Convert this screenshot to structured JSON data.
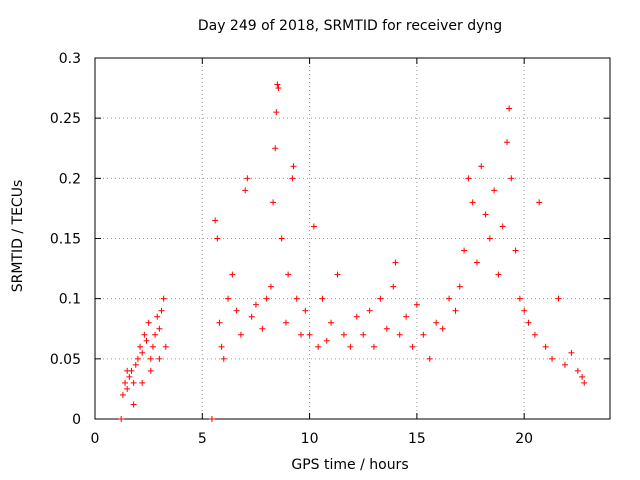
{
  "chart_data": {
    "type": "scatter",
    "title": "Day 249 of 2018, SRMTID for receiver dyng",
    "xlabel": "GPS time / hours",
    "ylabel": "SRMTID / TECUs",
    "xlim": [
      0,
      24
    ],
    "ylim": [
      0,
      0.3
    ],
    "xticks": [
      "0",
      "5",
      "10",
      "15",
      "20"
    ],
    "yticks": [
      "0",
      "0.05",
      "0.1",
      "0.15",
      "0.2",
      "0.25",
      "0.3"
    ],
    "xtick_values": [
      0,
      5,
      10,
      15,
      20
    ],
    "ytick_values": [
      0,
      0.05,
      0.1,
      0.15,
      0.2,
      0.25,
      0.3
    ],
    "grid": true,
    "marker": "+",
    "series": [
      {
        "name": "SRMTID",
        "color": "#ff0000",
        "points": [
          [
            1.22,
            0.0
          ],
          [
            5.45,
            0.0
          ],
          [
            1.3,
            0.02
          ],
          [
            1.4,
            0.03
          ],
          [
            1.5,
            0.025
          ],
          [
            1.6,
            0.035
          ],
          [
            1.7,
            0.04
          ],
          [
            1.8,
            0.03
          ],
          [
            1.9,
            0.045
          ],
          [
            2.0,
            0.05
          ],
          [
            2.1,
            0.06
          ],
          [
            2.2,
            0.055
          ],
          [
            2.3,
            0.07
          ],
          [
            2.4,
            0.065
          ],
          [
            2.5,
            0.08
          ],
          [
            2.6,
            0.05
          ],
          [
            2.7,
            0.06
          ],
          [
            2.8,
            0.07
          ],
          [
            2.9,
            0.085
          ],
          [
            3.0,
            0.075
          ],
          [
            3.1,
            0.09
          ],
          [
            3.2,
            0.1
          ],
          [
            3.3,
            0.06
          ],
          [
            1.5,
            0.04
          ],
          [
            1.8,
            0.012
          ],
          [
            2.2,
            0.03
          ],
          [
            2.6,
            0.04
          ],
          [
            3.0,
            0.05
          ],
          [
            5.6,
            0.165
          ],
          [
            5.7,
            0.15
          ],
          [
            5.8,
            0.08
          ],
          [
            5.9,
            0.06
          ],
          [
            6.0,
            0.05
          ],
          [
            6.2,
            0.1
          ],
          [
            6.4,
            0.12
          ],
          [
            6.6,
            0.09
          ],
          [
            6.8,
            0.07
          ],
          [
            7.0,
            0.19
          ],
          [
            7.1,
            0.2
          ],
          [
            7.3,
            0.085
          ],
          [
            7.5,
            0.095
          ],
          [
            7.8,
            0.075
          ],
          [
            8.0,
            0.1
          ],
          [
            8.2,
            0.11
          ],
          [
            8.3,
            0.18
          ],
          [
            8.4,
            0.225
          ],
          [
            8.45,
            0.255
          ],
          [
            8.5,
            0.278
          ],
          [
            8.55,
            0.275
          ],
          [
            8.7,
            0.15
          ],
          [
            8.9,
            0.08
          ],
          [
            9.0,
            0.12
          ],
          [
            9.2,
            0.2
          ],
          [
            9.25,
            0.21
          ],
          [
            9.4,
            0.1
          ],
          [
            9.6,
            0.07
          ],
          [
            9.8,
            0.09
          ],
          [
            10.0,
            0.07
          ],
          [
            10.2,
            0.16
          ],
          [
            10.4,
            0.06
          ],
          [
            10.6,
            0.1
          ],
          [
            10.8,
            0.065
          ],
          [
            11.0,
            0.08
          ],
          [
            11.3,
            0.12
          ],
          [
            11.6,
            0.07
          ],
          [
            11.9,
            0.06
          ],
          [
            12.2,
            0.085
          ],
          [
            12.5,
            0.07
          ],
          [
            12.8,
            0.09
          ],
          [
            13.0,
            0.06
          ],
          [
            13.3,
            0.1
          ],
          [
            13.6,
            0.075
          ],
          [
            13.9,
            0.11
          ],
          [
            14.0,
            0.13
          ],
          [
            14.2,
            0.07
          ],
          [
            14.5,
            0.085
          ],
          [
            14.8,
            0.06
          ],
          [
            15.0,
            0.095
          ],
          [
            15.3,
            0.07
          ],
          [
            15.6,
            0.05
          ],
          [
            15.9,
            0.08
          ],
          [
            16.2,
            0.075
          ],
          [
            16.5,
            0.1
          ],
          [
            16.8,
            0.09
          ],
          [
            17.0,
            0.11
          ],
          [
            17.2,
            0.14
          ],
          [
            17.4,
            0.2
          ],
          [
            17.6,
            0.18
          ],
          [
            17.8,
            0.13
          ],
          [
            18.0,
            0.21
          ],
          [
            18.2,
            0.17
          ],
          [
            18.4,
            0.15
          ],
          [
            18.6,
            0.19
          ],
          [
            18.8,
            0.12
          ],
          [
            19.0,
            0.16
          ],
          [
            19.2,
            0.23
          ],
          [
            19.3,
            0.258
          ],
          [
            19.4,
            0.2
          ],
          [
            19.6,
            0.14
          ],
          [
            19.8,
            0.1
          ],
          [
            20.0,
            0.09
          ],
          [
            20.2,
            0.08
          ],
          [
            20.5,
            0.07
          ],
          [
            20.7,
            0.18
          ],
          [
            21.0,
            0.06
          ],
          [
            21.3,
            0.05
          ],
          [
            21.6,
            0.1
          ],
          [
            21.9,
            0.045
          ],
          [
            22.2,
            0.055
          ],
          [
            22.5,
            0.04
          ],
          [
            22.7,
            0.035
          ],
          [
            22.8,
            0.03
          ]
        ]
      }
    ]
  }
}
